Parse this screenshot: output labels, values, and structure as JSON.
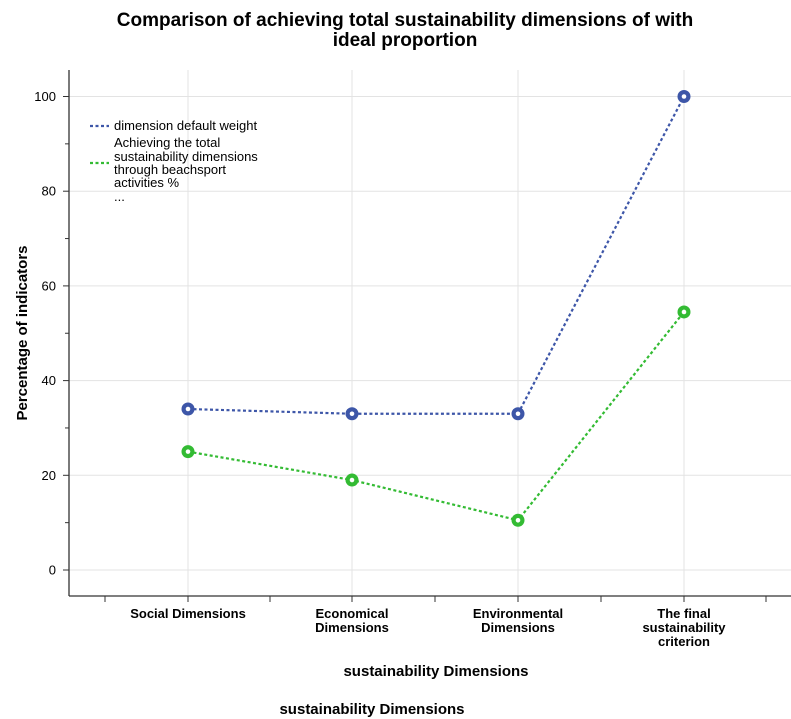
{
  "chart_data": {
    "type": "line",
    "title_lines": [
      "Comparison of achieving total sustainability  dimensions  of  with",
      "ideal proportion"
    ],
    "xlabel": "sustainability  Dimensions",
    "xlabel_repeat": "sustainability  Dimensions",
    "ylabel": "Percentage of indicators",
    "categories": [
      [
        "Social  Dimensions"
      ],
      [
        "Economical",
        "Dimensions"
      ],
      [
        "Environmental",
        "Dimensions"
      ],
      [
        "The final",
        "sustainability",
        "criterion"
      ]
    ],
    "yticks": [
      0,
      20,
      40,
      60,
      80,
      100
    ],
    "ylim": [
      -6,
      106
    ],
    "grid": true,
    "legend_position": "top-left",
    "series": [
      {
        "name_lines": [
          "dimension default weight"
        ],
        "color": "#3d56a8",
        "values": [
          34,
          33,
          33,
          100
        ]
      },
      {
        "name_lines": [
          "Achieving the  total",
          "sustainability  dimensions",
          "through   beachsport",
          "activities %",
          "..."
        ],
        "color": "#33bb33",
        "values": [
          25,
          19,
          10.5,
          54.5
        ]
      }
    ]
  }
}
